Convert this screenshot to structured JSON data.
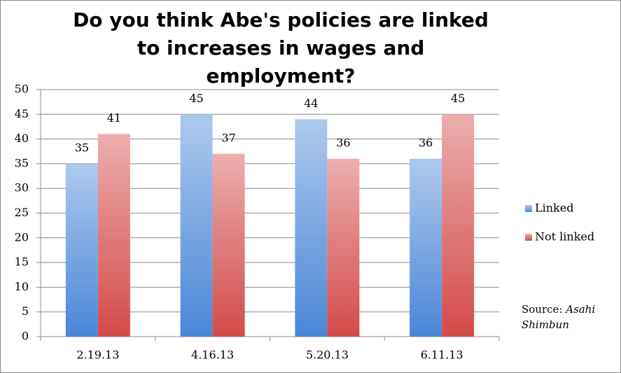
{
  "chart_data": {
    "type": "bar",
    "title": "Do you think Abe's policies are linked to increases in wages and employment?",
    "categories": [
      "2.19.13",
      "4.16.13",
      "5.20.13",
      "6.11.13"
    ],
    "series": [
      {
        "name": "Linked",
        "color": "#4a86d6",
        "values": [
          35,
          45,
          44,
          36
        ]
      },
      {
        "name": "Not linked",
        "color": "#d44a4a",
        "values": [
          41,
          37,
          36,
          45
        ]
      }
    ],
    "ylim": [
      0,
      50
    ],
    "yticks": [
      0,
      5,
      10,
      15,
      20,
      25,
      30,
      35,
      40,
      45,
      50
    ],
    "grid": true,
    "source_label": "Source:",
    "source_name": "Asahi Shimbun"
  }
}
